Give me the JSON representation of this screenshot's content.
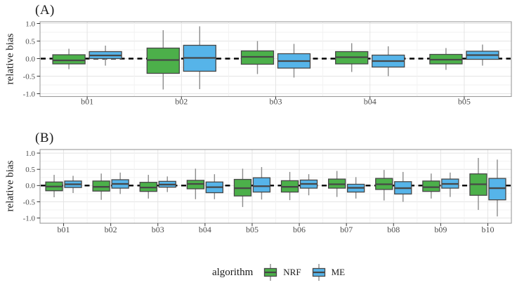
{
  "chart_data": [
    {
      "type": "boxplot",
      "panel_label": "(A)",
      "ylabel": "relative bias",
      "ylim": [
        -1.08,
        1.05
      ],
      "y_ticks": [
        "1.0",
        "0.5",
        "0.0",
        "-0.5",
        "-1.0"
      ],
      "y_tick_values": [
        1.0,
        0.5,
        0.0,
        -0.5,
        -1.0
      ],
      "y_minor_values": [
        0.75,
        0.25,
        -0.25,
        -0.75
      ],
      "reference_line_y": 0,
      "grid": true,
      "box_format": [
        "whisker_low",
        "q1",
        "median",
        "q3",
        "whisker_high"
      ],
      "categories": [
        "b01",
        "b02",
        "b03",
        "b04",
        "b05"
      ],
      "series": [
        {
          "name": "NRF",
          "color": "#4cb04a",
          "boxes": [
            [
              -0.3,
              -0.15,
              -0.05,
              0.11,
              0.28
            ],
            [
              -0.88,
              -0.42,
              -0.04,
              0.3,
              0.81
            ],
            [
              -0.44,
              -0.16,
              0.05,
              0.22,
              0.5
            ],
            [
              -0.38,
              -0.15,
              0.04,
              0.2,
              0.44
            ],
            [
              -0.32,
              -0.15,
              -0.03,
              0.12,
              0.3
            ]
          ]
        },
        {
          "name": "ME",
          "color": "#56b4e9",
          "boxes": [
            [
              -0.2,
              0.0,
              0.09,
              0.2,
              0.37
            ],
            [
              -0.87,
              -0.36,
              0.02,
              0.38,
              0.92
            ],
            [
              -0.54,
              -0.27,
              -0.07,
              0.14,
              0.42
            ],
            [
              -0.5,
              -0.24,
              -0.07,
              0.1,
              0.35
            ],
            [
              -0.2,
              -0.02,
              0.1,
              0.21,
              0.4
            ]
          ]
        }
      ]
    },
    {
      "type": "boxplot",
      "panel_label": "(B)",
      "ylabel": "relative bias",
      "ylim": [
        -1.16,
        1.11
      ],
      "y_ticks": [
        "1.0",
        "0.5",
        "0.0",
        "-0.5",
        "-1.0"
      ],
      "y_tick_values": [
        1.0,
        0.5,
        0.0,
        -0.5,
        -1.0
      ],
      "y_minor_values": [
        0.75,
        0.25,
        -0.25,
        -0.75
      ],
      "reference_line_y": 0,
      "grid": true,
      "box_format": [
        "whisker_low",
        "q1",
        "median",
        "q3",
        "whisker_high"
      ],
      "categories": [
        "b01",
        "b02",
        "b03",
        "b04",
        "b05",
        "b06",
        "b07",
        "b08",
        "b09",
        "b10"
      ],
      "series": [
        {
          "name": "NRF",
          "color": "#4cb04a",
          "boxes": [
            [
              -0.36,
              -0.16,
              -0.03,
              0.11,
              0.33
            ],
            [
              -0.44,
              -0.17,
              -0.04,
              0.14,
              0.37
            ],
            [
              -0.4,
              -0.18,
              -0.06,
              0.1,
              0.33
            ],
            [
              -0.42,
              -0.1,
              0.05,
              0.16,
              0.52
            ],
            [
              -0.66,
              -0.32,
              -0.08,
              0.19,
              0.52
            ],
            [
              -0.45,
              -0.2,
              -0.04,
              0.15,
              0.42
            ],
            [
              -0.35,
              -0.08,
              0.04,
              0.2,
              0.45
            ],
            [
              -0.46,
              -0.12,
              0.04,
              0.22,
              0.48
            ],
            [
              -0.4,
              -0.18,
              -0.05,
              0.14,
              0.37
            ],
            [
              -0.75,
              -0.3,
              0.04,
              0.36,
              0.85
            ]
          ]
        },
        {
          "name": "ME",
          "color": "#56b4e9",
          "boxes": [
            [
              -0.23,
              -0.06,
              0.04,
              0.14,
              0.3
            ],
            [
              -0.26,
              -0.08,
              0.05,
              0.18,
              0.4
            ],
            [
              -0.2,
              -0.05,
              0.03,
              0.13,
              0.28
            ],
            [
              -0.42,
              -0.22,
              -0.05,
              0.11,
              0.35
            ],
            [
              -0.43,
              -0.2,
              -0.02,
              0.24,
              0.57
            ],
            [
              -0.3,
              -0.08,
              0.05,
              0.17,
              0.35
            ],
            [
              -0.4,
              -0.2,
              -0.07,
              0.04,
              0.26
            ],
            [
              -0.5,
              -0.26,
              -0.08,
              0.12,
              0.42
            ],
            [
              -0.35,
              -0.08,
              0.05,
              0.2,
              0.4
            ],
            [
              -0.95,
              -0.44,
              -0.08,
              0.22,
              0.8
            ]
          ]
        }
      ]
    }
  ],
  "legend": {
    "title": "algorithm",
    "entries": [
      {
        "label": "NRF",
        "color": "#4cb04a"
      },
      {
        "label": "ME",
        "color": "#56b4e9"
      }
    ]
  },
  "style_colors": {
    "box_border": "#474747",
    "whisker": "#8c8c8c",
    "panel_frame": "#9b9b9b",
    "grid_major": "#e4e4e4",
    "grid_minor": "#f1f1f1",
    "axis_text": "#4d4d4d",
    "reference_line": "#000000"
  }
}
